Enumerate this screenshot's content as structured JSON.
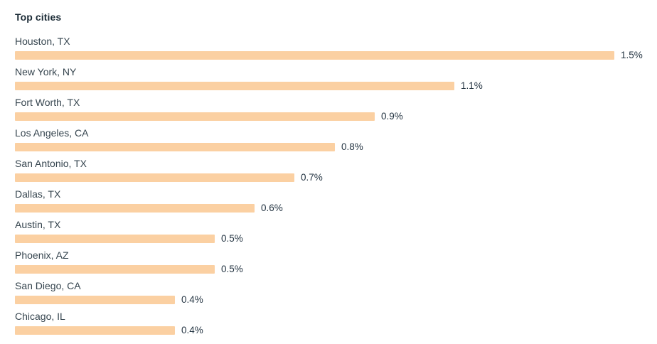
{
  "title": "Top cities",
  "colors": {
    "bar": "#FBD0A2",
    "title_text": "#1B2B36",
    "label_text": "#36454F",
    "value_text": "#243442",
    "background": "#FFFFFF"
  },
  "chart_data": {
    "type": "bar",
    "orientation": "horizontal",
    "title": "Top cities",
    "categories": [
      "Houston, TX",
      "New York, NY",
      "Fort Worth, TX",
      "Los Angeles, CA",
      "San Antonio, TX",
      "Dallas, TX",
      "Austin, TX",
      "Phoenix, AZ",
      "San Diego, CA",
      "Chicago, IL"
    ],
    "values": [
      1.5,
      1.1,
      0.9,
      0.8,
      0.7,
      0.6,
      0.5,
      0.5,
      0.4,
      0.4
    ],
    "value_labels": [
      "1.5%",
      "1.1%",
      "0.9%",
      "0.8%",
      "0.7%",
      "0.6%",
      "0.5%",
      "0.5%",
      "0.4%",
      "0.4%"
    ],
    "unit": "%",
    "xlim": [
      0,
      1.5
    ],
    "bar_color": "#FBD0A2",
    "grid": false,
    "legend": false,
    "value_label_position": "right-of-bar"
  }
}
